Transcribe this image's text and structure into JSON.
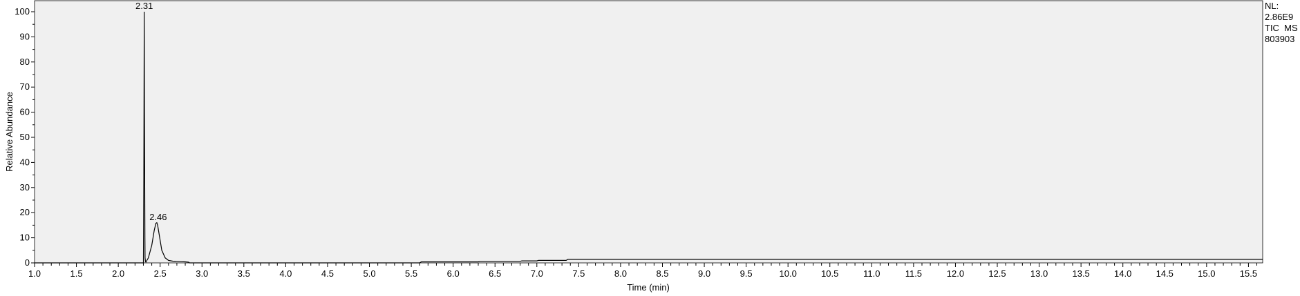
{
  "chart_data": {
    "type": "line",
    "title": "",
    "xlabel": "Time (min)",
    "ylabel": "Relative Abundance",
    "xlim": [
      1.0,
      15.67
    ],
    "ylim": [
      0,
      100
    ],
    "x_ticks": [
      "1.0",
      "1.5",
      "2.0",
      "2.5",
      "3.0",
      "3.5",
      "4.0",
      "4.5",
      "5.0",
      "5.5",
      "6.0",
      "6.5",
      "7.0",
      "7.5",
      "8.0",
      "8.5",
      "9.0",
      "9.5",
      "10.0",
      "10.5",
      "11.0",
      "11.5",
      "12.0",
      "12.5",
      "13.0",
      "13.5",
      "14.0",
      "14.5",
      "15.0",
      "15.5"
    ],
    "y_ticks": [
      "0",
      "10",
      "20",
      "30",
      "40",
      "50",
      "60",
      "70",
      "80",
      "90",
      "100"
    ],
    "grid": false,
    "plot_background": "#f0f0f0",
    "line_color": "#000000",
    "peak_labels": [
      {
        "x": 2.31,
        "y": 100,
        "text": "2.31"
      },
      {
        "x": 2.46,
        "y": 16,
        "text": "2.46"
      }
    ],
    "series": [
      {
        "x": [
          1.0,
          2.28,
          2.3,
          2.305,
          2.31,
          2.313,
          2.318,
          2.32,
          2.325,
          2.33,
          2.36,
          2.4,
          2.43,
          2.45,
          2.46,
          2.47,
          2.49,
          2.52,
          2.56,
          2.6,
          2.65,
          2.7,
          2.75,
          2.8,
          2.84,
          2.85,
          5.6,
          5.62,
          6.3,
          6.32,
          6.8,
          6.82,
          7.0,
          7.02,
          7.35,
          7.37,
          15.67
        ],
        "y": [
          0,
          0,
          0,
          35,
          100,
          60,
          10,
          2,
          0.5,
          0.3,
          2,
          7,
          13,
          15.8,
          16,
          15,
          11,
          5,
          2,
          1,
          0.7,
          0.6,
          0.5,
          0.4,
          0.3,
          0,
          0,
          0.4,
          0.4,
          0.6,
          0.6,
          0.8,
          0.8,
          1.0,
          1.0,
          1.4,
          1.4
        ]
      }
    ],
    "side_info": [
      "NL:",
      "2.86E9",
      "TIC  MS",
      "803903"
    ]
  }
}
